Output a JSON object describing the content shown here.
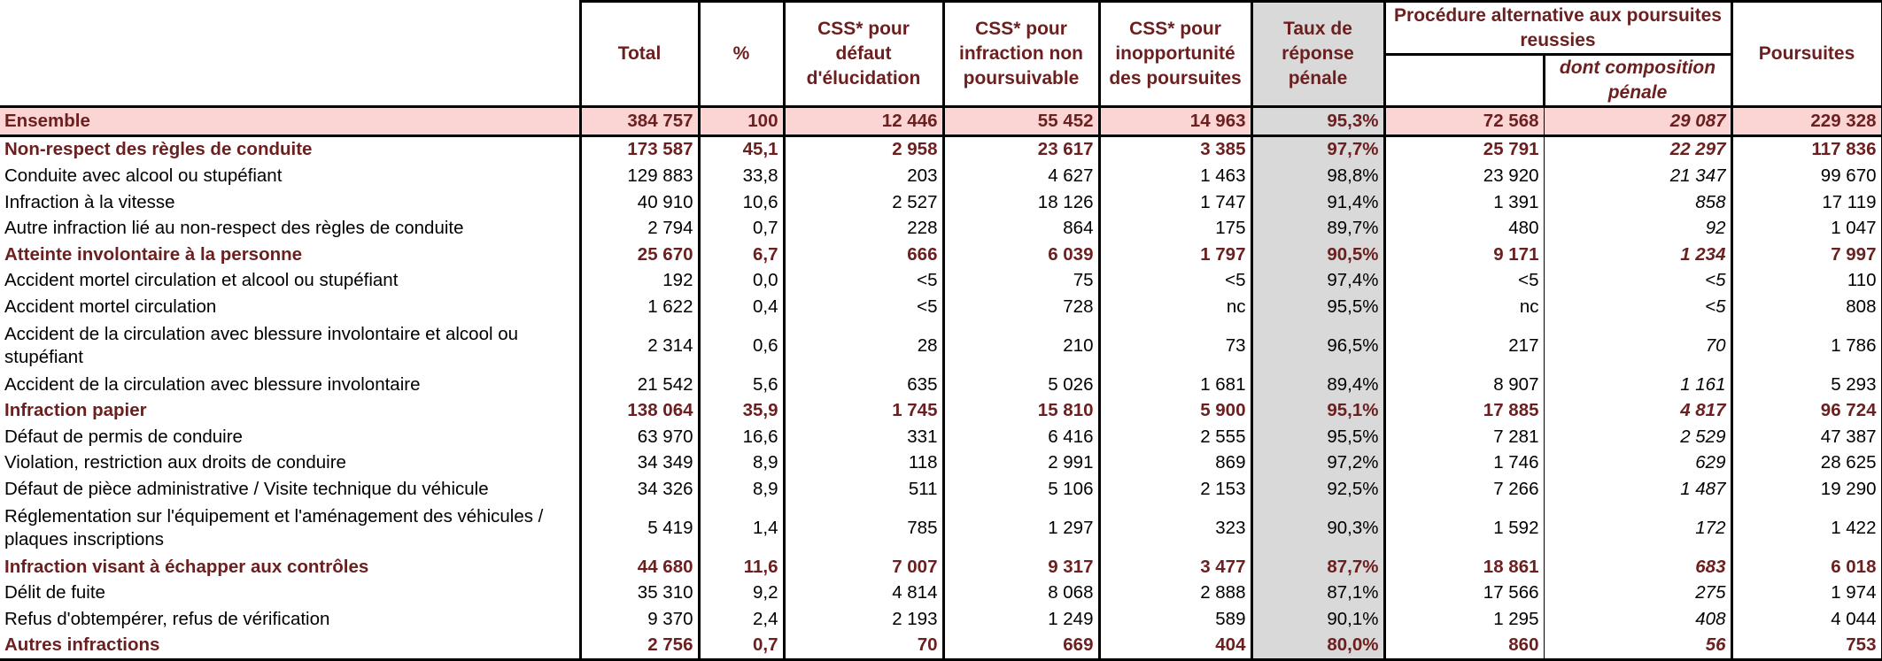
{
  "columns": {
    "total": "Total",
    "pct": "%",
    "css_elucidation": "CSS* pour défaut d'élucidation",
    "css_non_poursuivable": "CSS* pour infraction non poursuivable",
    "css_inopportunite": "CSS* pour inopportunité des poursuites",
    "taux": "Taux de réponse pénale",
    "procedure_group": "Procédure alternative aux poursuites reussies",
    "procedure_sub_blank": "",
    "dont_composition": "dont composition pénale",
    "poursuites": "Poursuites"
  },
  "rows": [
    {
      "label": "Ensemble",
      "type": "ensemble",
      "values": [
        "384 757",
        "100",
        "12 446",
        "55 452",
        "14 963",
        "95,3%",
        "72 568",
        "29 087",
        "229 328"
      ]
    },
    {
      "label": "Non-respect des règles de conduite",
      "type": "cat",
      "values": [
        "173 587",
        "45,1",
        "2 958",
        "23 617",
        "3 385",
        "97,7%",
        "25 791",
        "22 297",
        "117 836"
      ]
    },
    {
      "label": "Conduite avec alcool ou stupéfiant",
      "type": "sub",
      "values": [
        "129 883",
        "33,8",
        "203",
        "4 627",
        "1 463",
        "98,8%",
        "23 920",
        "21 347",
        "99 670"
      ]
    },
    {
      "label": "Infraction à la vitesse",
      "type": "sub",
      "values": [
        "40 910",
        "10,6",
        "2 527",
        "18 126",
        "1 747",
        "91,4%",
        "1 391",
        "858",
        "17 119"
      ]
    },
    {
      "label": "Autre infraction lié au non-respect des règles de conduite",
      "type": "sub",
      "values": [
        "2 794",
        "0,7",
        "228",
        "864",
        "175",
        "89,7%",
        "480",
        "92",
        "1 047"
      ]
    },
    {
      "label": "Atteinte involontaire à la personne",
      "type": "cat",
      "values": [
        "25 670",
        "6,7",
        "666",
        "6 039",
        "1 797",
        "90,5%",
        "9 171",
        "1 234",
        "7 997"
      ]
    },
    {
      "label": "Accident mortel circulation et alcool ou stupéfiant",
      "type": "sub",
      "values": [
        "192",
        "0,0",
        "<5",
        "75",
        "<5",
        "97,4%",
        "<5",
        "<5",
        "110"
      ]
    },
    {
      "label": "Accident mortel circulation",
      "type": "sub",
      "values": [
        "1 622",
        "0,4",
        "<5",
        "728",
        "nc",
        "95,5%",
        "nc",
        "<5",
        "808"
      ]
    },
    {
      "label": "Accident de la circulation avec blessure involontaire et alcool ou stupéfiant",
      "type": "sub-tall",
      "values": [
        "2 314",
        "0,6",
        "28",
        "210",
        "73",
        "96,5%",
        "217",
        "70",
        "1 786"
      ]
    },
    {
      "label": "Accident de la circulation avec blessure involontaire",
      "type": "sub",
      "values": [
        "21 542",
        "5,6",
        "635",
        "5 026",
        "1 681",
        "89,4%",
        "8 907",
        "1 161",
        "5 293"
      ]
    },
    {
      "label": "Infraction papier",
      "type": "cat",
      "values": [
        "138 064",
        "35,9",
        "1 745",
        "15 810",
        "5 900",
        "95,1%",
        "17 885",
        "4 817",
        "96 724"
      ]
    },
    {
      "label": "Défaut de permis de conduire",
      "type": "sub",
      "values": [
        "63 970",
        "16,6",
        "331",
        "6 416",
        "2 555",
        "95,5%",
        "7 281",
        "2 529",
        "47 387"
      ]
    },
    {
      "label": "Violation, restriction aux droits de conduire",
      "type": "sub",
      "values": [
        "34 349",
        "8,9",
        "118",
        "2 991",
        "869",
        "97,2%",
        "1 746",
        "629",
        "28 625"
      ]
    },
    {
      "label": "Défaut de pièce administrative / Visite technique du véhicule",
      "type": "sub",
      "values": [
        "34 326",
        "8,9",
        "511",
        "5 106",
        "2 153",
        "92,5%",
        "7 266",
        "1 487",
        "19 290"
      ]
    },
    {
      "label": "Réglementation sur l'équipement et l'aménagement des véhicules / plaques inscriptions",
      "type": "sub-tall",
      "values": [
        "5 419",
        "1,4",
        "785",
        "1 297",
        "323",
        "90,3%",
        "1 592",
        "172",
        "1 422"
      ]
    },
    {
      "label": "Infraction visant à échapper aux contrôles",
      "type": "cat",
      "values": [
        "44 680",
        "11,6",
        "7 007",
        "9 317",
        "3 477",
        "87,7%",
        "18 861",
        "683",
        "6 018"
      ]
    },
    {
      "label": "Délit de fuite",
      "type": "sub",
      "values": [
        "35 310",
        "9,2",
        "4 814",
        "8 068",
        "2 888",
        "87,1%",
        "17 566",
        "275",
        "1 974"
      ]
    },
    {
      "label": "Refus d'obtempérer, refus de vérification",
      "type": "sub",
      "values": [
        "9 370",
        "2,4",
        "2 193",
        "1 249",
        "589",
        "90,1%",
        "1 295",
        "408",
        "4 044"
      ]
    },
    {
      "label": "Autres infractions",
      "type": "cat-last",
      "values": [
        "2 756",
        "0,7",
        "70",
        "669",
        "404",
        "80,0%",
        "860",
        "56",
        "753"
      ]
    }
  ]
}
